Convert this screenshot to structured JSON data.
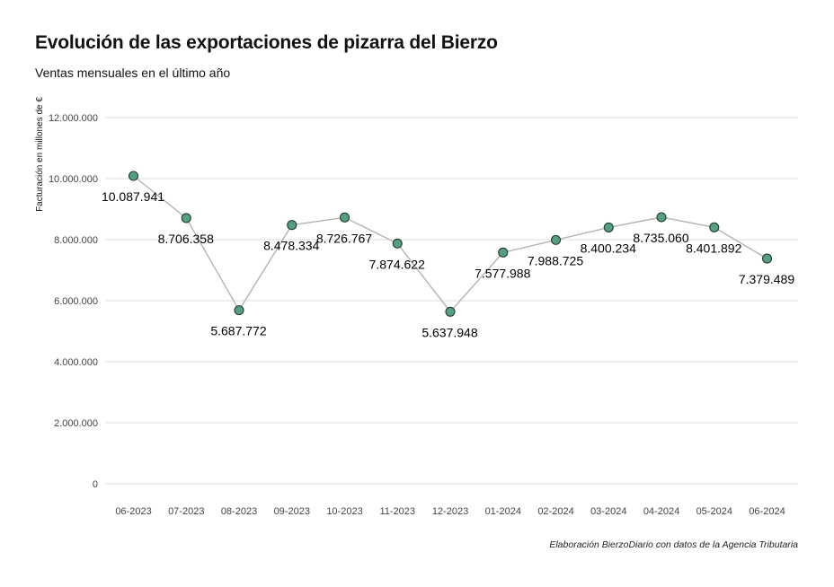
{
  "title": "Evolución de las exportaciones de pizarra del Bierzo",
  "subtitle": "Ventas mensuales en el último año",
  "caption": "Elaboración BierzoDiario con datos de la Agencia Tributaria",
  "colors": {
    "line": "#b3b3b3",
    "point_fill": "#5a9e82",
    "point_stroke": "#1f3d31",
    "grid": "#dddddd"
  },
  "chart_data": {
    "type": "line",
    "title": "Evolución de las exportaciones de pizarra del Bierzo",
    "subtitle": "Ventas mensuales en el último año",
    "xlabel": "",
    "ylabel": "Facturación en millones de €",
    "categories": [
      "06-2023",
      "07-2023",
      "08-2023",
      "09-2023",
      "10-2023",
      "11-2023",
      "12-2023",
      "01-2024",
      "02-2024",
      "03-2024",
      "04-2024",
      "05-2024",
      "06-2024"
    ],
    "values": [
      10087941,
      8706358,
      5687772,
      8478334,
      8726767,
      7874622,
      5637948,
      7577988,
      7988725,
      8400234,
      8735060,
      8401892,
      7379489
    ],
    "data_labels": [
      "10.087.941",
      "8.706.358",
      "5.687.772",
      "8.478.334",
      "8.726.767",
      "7.874.622",
      "5.637.948",
      "7.577.988",
      "7.988.725",
      "8.400.234",
      "8.735.060",
      "8.401.892",
      "7.379.489"
    ],
    "yticks": [
      0,
      2000000,
      4000000,
      6000000,
      8000000,
      10000000,
      12000000
    ],
    "ytick_labels": [
      "0",
      "2.000.000",
      "4.000.000",
      "6.000.000",
      "8.000.000",
      "10.000.000",
      "12.000.000"
    ],
    "ylim": [
      0,
      12000000
    ],
    "grid": "horizontal",
    "legend": "none"
  }
}
